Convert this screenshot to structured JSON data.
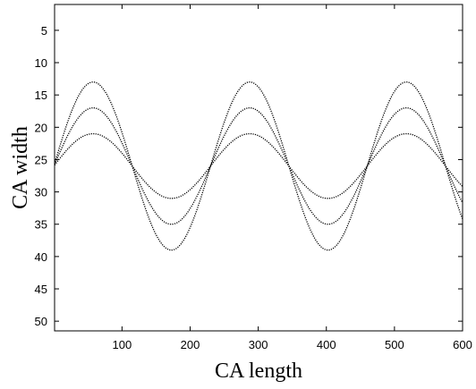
{
  "chart_data": {
    "type": "line",
    "title": "",
    "xlabel": "CA length",
    "ylabel": "CA width",
    "xlim": [
      1,
      600
    ],
    "ylim": [
      51.5,
      1
    ],
    "y_reversed": true,
    "grid": false,
    "legend": "none",
    "xticks": [
      100,
      200,
      300,
      400,
      500,
      600
    ],
    "yticks": [
      5,
      10,
      15,
      20,
      25,
      30,
      35,
      40,
      45,
      50
    ],
    "line_color": "#000000",
    "series": [
      {
        "center": 26,
        "amplitude": 13,
        "period": 230,
        "phase_x": 0,
        "peak_x": 57.5
      },
      {
        "center": 26,
        "amplitude": 9.0,
        "period": 230,
        "phase_x": 0,
        "peak_x": 57.5
      },
      {
        "center": 26,
        "amplitude": 5.0,
        "period": 230,
        "phase_x": 0,
        "peak_x": 57.5
      }
    ]
  }
}
